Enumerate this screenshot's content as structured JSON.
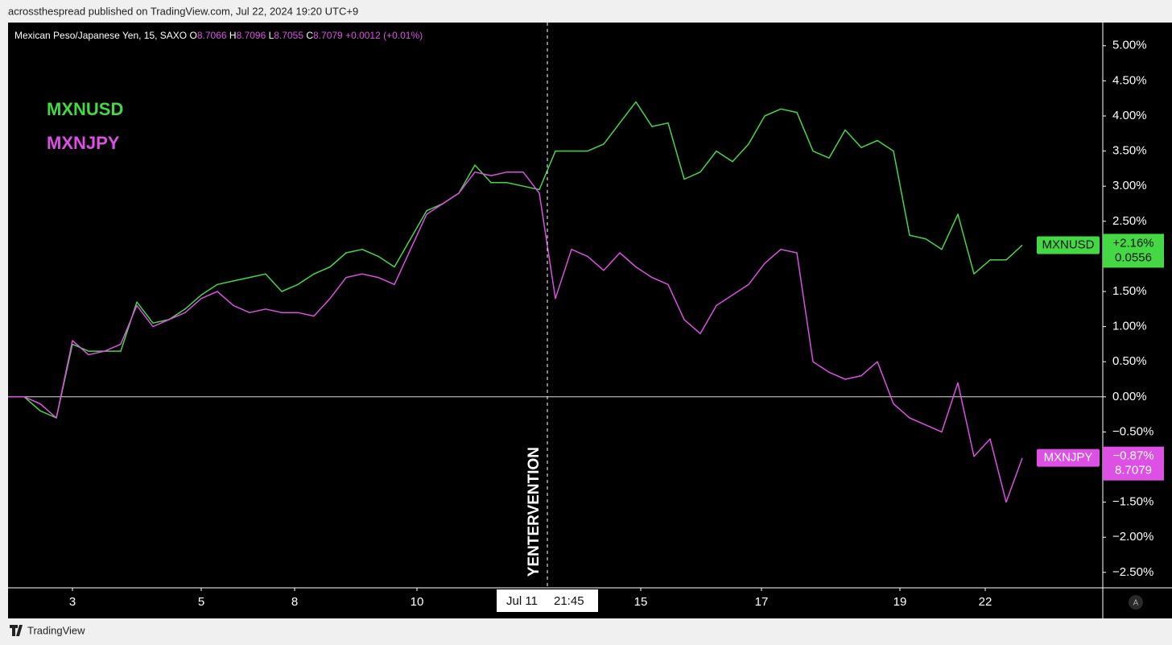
{
  "header": {
    "text": "acrossthespread published on TradingView.com, Jul 22, 2024 19:20 UTC+9"
  },
  "footer": {
    "brand": "TradingView",
    "scale_button": "A"
  },
  "chart_data": {
    "type": "line",
    "legend_header": {
      "symbol": "Mexican Peso/Japanese Yen, 15, SAXO",
      "fields": [
        {
          "key": "O",
          "value": "8.7066"
        },
        {
          "key": "H",
          "value": "8.7096"
        },
        {
          "key": "L",
          "value": "8.7055"
        },
        {
          "key": "C",
          "value": "8.7079"
        }
      ],
      "change": "+0.0012 (+0.01%)"
    },
    "annotation": "YENTERVENTION",
    "crosshair": {
      "x": 8.375,
      "date_label": "Jul 11",
      "time_label": "21:45"
    },
    "baseline": 0,
    "x": [
      0,
      0.25,
      0.5,
      0.75,
      1,
      1.25,
      1.5,
      1.75,
      2,
      2.25,
      2.5,
      2.75,
      3,
      3.25,
      3.5,
      3.75,
      4,
      4.25,
      4.5,
      4.75,
      5,
      5.25,
      5.5,
      5.75,
      6,
      6.25,
      6.5,
      6.75,
      7,
      7.25,
      7.5,
      7.75,
      8,
      8.25,
      8.5,
      8.75,
      9,
      9.25,
      9.5,
      9.75,
      10,
      10.25,
      10.5,
      10.75,
      11,
      11.25,
      11.5,
      11.75,
      12,
      12.25,
      12.5,
      12.75,
      13,
      13.25,
      13.5,
      13.75,
      14,
      14.25,
      14.5,
      14.75,
      15,
      15.25,
      15.5,
      15.75
    ],
    "series": [
      {
        "name": "MXNUSD",
        "color": "#45d845",
        "change_label": "+2.16%",
        "price_label": "0.0556",
        "values": [
          0,
          0,
          -0.2,
          -0.3,
          0.75,
          0.65,
          0.65,
          0.65,
          1.35,
          1.05,
          1.1,
          1.25,
          1.45,
          1.6,
          1.65,
          1.7,
          1.75,
          1.5,
          1.6,
          1.75,
          1.85,
          2.05,
          2.1,
          2,
          1.85,
          2.25,
          2.65,
          2.75,
          2.9,
          3.3,
          3.05,
          3.05,
          3,
          2.95,
          3.5,
          3.5,
          3.5,
          3.6,
          3.9,
          4.2,
          3.85,
          3.9,
          3.1,
          3.2,
          3.5,
          3.35,
          3.6,
          4,
          4.1,
          4.05,
          3.5,
          3.4,
          3.8,
          3.55,
          3.65,
          3.5,
          2.3,
          2.25,
          2.1,
          2.6,
          1.75,
          1.95,
          1.95,
          2.16
        ]
      },
      {
        "name": "MXNJPY",
        "color": "#dc50e4",
        "change_label": "−0.87%",
        "price_label": "8.7079",
        "values": [
          0,
          0,
          -0.1,
          -0.3,
          0.8,
          0.6,
          0.65,
          0.75,
          1.3,
          1,
          1.1,
          1.2,
          1.4,
          1.5,
          1.3,
          1.2,
          1.25,
          1.2,
          1.2,
          1.15,
          1.4,
          1.7,
          1.75,
          1.7,
          1.6,
          2.1,
          2.6,
          2.75,
          2.9,
          3.2,
          3.15,
          3.2,
          3.2,
          2.9,
          1.4,
          2.1,
          2,
          1.8,
          2.05,
          1.85,
          1.7,
          1.6,
          1.1,
          0.9,
          1.3,
          1.45,
          1.6,
          1.9,
          2.1,
          2.05,
          0.5,
          0.35,
          0.25,
          0.3,
          0.5,
          -0.1,
          -0.3,
          -0.4,
          -0.5,
          0.2,
          -0.85,
          -0.6,
          -1.5,
          -0.87
        ]
      }
    ],
    "xlim": [
      0,
      17
    ],
    "xticks": [
      {
        "value": 1,
        "label": "3"
      },
      {
        "value": 3,
        "label": "5"
      },
      {
        "value": 4.45,
        "label": "8"
      },
      {
        "value": 6.35,
        "label": "10"
      },
      {
        "value": 9.825,
        "label": "15"
      },
      {
        "value": 11.7,
        "label": "17"
      },
      {
        "value": 13.85,
        "label": "19"
      },
      {
        "value": 15.175,
        "label": "22"
      }
    ],
    "ylim": [
      -2.72,
      5.33
    ],
    "yticks": [
      {
        "value": 5,
        "label": "5.00%"
      },
      {
        "value": 4.5,
        "label": "4.50%"
      },
      {
        "value": 4,
        "label": "4.00%"
      },
      {
        "value": 3.5,
        "label": "3.50%"
      },
      {
        "value": 3,
        "label": "3.00%"
      },
      {
        "value": 2.5,
        "label": "2.50%"
      },
      {
        "value": 1.5,
        "label": "1.50%"
      },
      {
        "value": 1,
        "label": "1.00%"
      },
      {
        "value": 0.5,
        "label": "0.50%"
      },
      {
        "value": 0,
        "label": "0.00%"
      },
      {
        "value": -0.5,
        "label": "−0.50%"
      },
      {
        "value": -1.5,
        "label": "−1.50%"
      },
      {
        "value": -2,
        "label": "−2.00%"
      },
      {
        "value": -2.5,
        "label": "−2.50%"
      }
    ],
    "grid": false
  }
}
